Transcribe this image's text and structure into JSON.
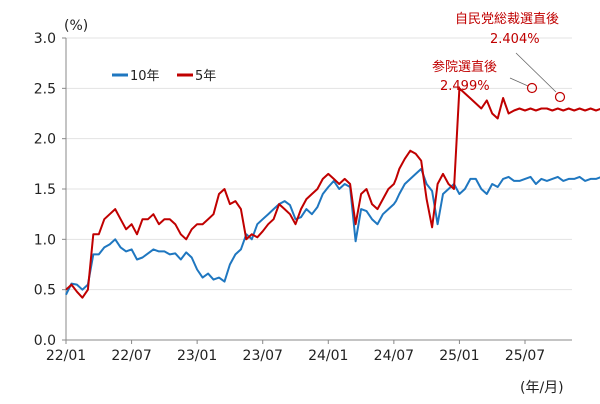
{
  "chart_data": {
    "type": "line",
    "title": "",
    "xlabel": "(年/月)",
    "ylabel": "(%)",
    "ylim": [
      0.0,
      3.0
    ],
    "yticks": [
      "0.0",
      "0.5",
      "1.0",
      "1.5",
      "2.0",
      "2.5",
      "3.0"
    ],
    "xticks": [
      "22/01",
      "22/07",
      "23/01",
      "23/07",
      "24/01",
      "24/07",
      "25/01",
      "25/07"
    ],
    "grid": true,
    "legend_position": "top-left",
    "legend": [
      "10年",
      "5年"
    ],
    "x_unit": "months since 2022/01",
    "x": [
      0,
      0.5,
      1,
      1.5,
      2,
      2.5,
      3,
      3.5,
      4,
      4.5,
      5,
      5.5,
      6,
      6.5,
      7,
      7.5,
      8,
      8.5,
      9,
      9.5,
      10,
      10.5,
      11,
      11.5,
      12,
      12.5,
      13,
      13.5,
      14,
      14.5,
      15,
      15.5,
      16,
      16.5,
      17,
      17.5,
      18,
      18.5,
      19,
      19.5,
      20,
      20.5,
      21,
      21.5,
      22,
      22.5,
      23,
      23.5,
      24,
      24.5,
      25,
      25.5,
      26,
      26.5,
      27,
      27.5,
      28,
      28.5,
      29,
      29.5,
      30,
      30.2,
      30.5,
      31,
      31.5,
      32,
      32.5,
      33,
      33.5,
      34,
      34.5,
      35,
      35.5,
      36,
      36.5,
      37,
      37.5,
      38,
      38.5,
      39,
      39.5,
      40,
      40.5,
      41,
      41.5,
      42,
      42.5,
      43,
      43.5,
      44,
      44.5,
      45,
      45.5,
      46,
      46.5,
      47,
      47.5,
      48,
      48.5,
      49,
      49.5,
      50,
      50.5,
      51
    ],
    "series": [
      {
        "name": "10年",
        "color": "#1f77c0",
        "values": [
          0.45,
          0.56,
          0.55,
          0.5,
          0.55,
          0.85,
          0.85,
          0.92,
          0.95,
          1.0,
          0.92,
          0.88,
          0.9,
          0.8,
          0.82,
          0.86,
          0.9,
          0.88,
          0.88,
          0.85,
          0.86,
          0.8,
          0.87,
          0.82,
          0.7,
          0.62,
          0.66,
          0.6,
          0.62,
          0.58,
          0.75,
          0.85,
          0.9,
          1.05,
          1.0,
          1.15,
          1.2,
          1.25,
          1.3,
          1.35,
          1.38,
          1.34,
          1.2,
          1.22,
          1.3,
          1.25,
          1.32,
          1.45,
          1.52,
          1.58,
          1.5,
          1.55,
          1.52,
          0.98,
          1.3,
          1.28,
          1.2,
          1.15,
          1.25,
          1.3,
          1.35,
          1.38,
          1.45,
          1.55,
          1.6,
          1.65,
          1.7,
          1.55,
          1.48,
          1.15,
          1.45,
          1.5,
          1.55,
          1.45,
          1.5,
          1.6,
          1.6,
          1.5,
          1.45,
          1.55,
          1.52,
          1.6,
          1.62,
          1.58,
          1.58,
          1.6,
          1.62,
          1.55,
          1.6,
          1.58,
          1.6,
          1.62,
          1.58,
          1.6,
          1.6,
          1.62,
          1.58,
          1.6,
          1.6,
          1.62,
          1.6,
          1.58,
          1.6,
          1.58
        ]
      },
      {
        "name": "5年",
        "color": "#c00000",
        "values": [
          0.5,
          0.55,
          0.48,
          0.42,
          0.5,
          1.05,
          1.05,
          1.2,
          1.25,
          1.3,
          1.2,
          1.1,
          1.15,
          1.05,
          1.2,
          1.2,
          1.25,
          1.15,
          1.2,
          1.2,
          1.15,
          1.05,
          1.0,
          1.1,
          1.15,
          1.15,
          1.2,
          1.25,
          1.45,
          1.5,
          1.35,
          1.38,
          1.3,
          1.0,
          1.05,
          1.02,
          1.08,
          1.15,
          1.2,
          1.35,
          1.3,
          1.25,
          1.15,
          1.3,
          1.4,
          1.45,
          1.5,
          1.6,
          1.65,
          1.6,
          1.55,
          1.6,
          1.55,
          1.15,
          1.45,
          1.5,
          1.35,
          1.3,
          1.4,
          1.5,
          1.55,
          1.6,
          1.7,
          1.8,
          1.88,
          1.85,
          1.78,
          1.4,
          1.12,
          1.55,
          1.65,
          1.55,
          1.5,
          2.499,
          2.45,
          2.4,
          2.35,
          2.3,
          2.38,
          2.25,
          2.2,
          2.404,
          2.25,
          2.28,
          2.3,
          2.28,
          2.3,
          2.28,
          2.3,
          2.3,
          2.28,
          2.3,
          2.28,
          2.3,
          2.28,
          2.3,
          2.28,
          2.3,
          2.28,
          2.3,
          2.28,
          2.3,
          2.28,
          2.25
        ]
      }
    ],
    "annotations": [
      {
        "label": "参院選直後",
        "value": "2.499%"
      },
      {
        "label": "自民党総裁選直後",
        "value": "2.404%"
      }
    ]
  },
  "labels": {
    "y_unit": "(%)",
    "x_unit": "(年/月)",
    "legend_10y": "10年",
    "legend_5y": "5年",
    "ann1_title": "参院選直後",
    "ann1_value": "2.499%",
    "ann2_title": "自民党総裁選直後",
    "ann2_value": "2.404%"
  }
}
